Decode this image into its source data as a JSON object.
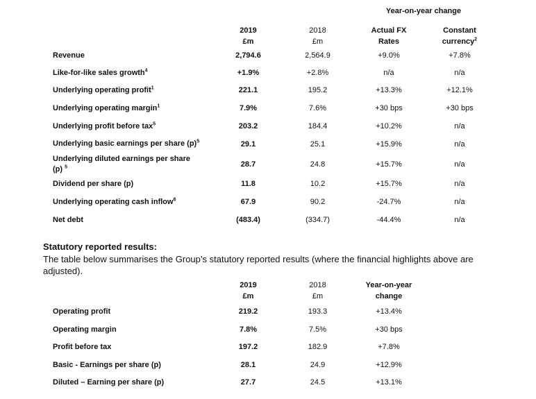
{
  "table1": {
    "yoy_header": "Year-on-year change",
    "col_headers": [
      {
        "line1": "2019",
        "line2": "£m"
      },
      {
        "line1": "2018",
        "line2": "£m"
      },
      {
        "line1": "Actual FX",
        "line2": "Rates"
      },
      {
        "line1": "Constant",
        "line2": "currency",
        "sup": "2"
      }
    ],
    "rows": [
      {
        "label": "Revenue",
        "sup": "",
        "v2019": "2,794.6",
        "v2018": "2,564.9",
        "actual": "+9.0%",
        "constant": "+7.8%"
      },
      {
        "label": "Like-for-like sales growth",
        "sup": "4",
        "v2019": "+1.9%",
        "v2018": "+2.8%",
        "actual": "n/a",
        "constant": "n/a"
      },
      {
        "label": "Underlying operating profit",
        "sup": "1",
        "v2019": "221.1",
        "v2018": "195.2",
        "actual": "+13.3%",
        "constant": "+12.1%"
      },
      {
        "label": "Underlying operating margin",
        "sup": "1",
        "v2019": "7.9%",
        "v2018": "7.6%",
        "actual": "+30 bps",
        "constant": "+30 bps"
      },
      {
        "label": "Underlying profit before tax",
        "sup": "5",
        "v2019": "203.2",
        "v2018": "184.4",
        "actual": "+10.2%",
        "constant": "n/a"
      },
      {
        "label": "Underlying basic earnings per share (p)",
        "sup": "5",
        "v2019": "29.1",
        "v2018": "25.1",
        "actual": "+15.9%",
        "constant": "n/a"
      },
      {
        "label": "Underlying diluted earnings per share",
        "label2": "(p)",
        "sup": "5",
        "v2019": "28.7",
        "v2018": "24.8",
        "actual": "+15.7%",
        "constant": "n/a"
      },
      {
        "label": "Dividend per share (p)",
        "sup": "",
        "v2019": "11.8",
        "v2018": "10.2",
        "actual": "+15.7%",
        "constant": "n/a"
      },
      {
        "label": "Underlying operating cash inflow",
        "sup": "6",
        "v2019": "67.9",
        "v2018": "90.2",
        "actual": "-24.7%",
        "constant": "n/a"
      },
      {
        "label": "Net debt",
        "sup": "",
        "v2019": "(483.4)",
        "v2018": "(334.7)",
        "actual": "-44.4%",
        "constant": "n/a"
      }
    ]
  },
  "section": {
    "title": "Statutory reported results:",
    "body": "The table below summarises the Group’s statutory reported results (where the financial highlights above are adjusted)."
  },
  "table2": {
    "col_headers": [
      {
        "line1": "2019",
        "line2": "£m"
      },
      {
        "line1": "2018",
        "line2": "£m"
      },
      {
        "line1": "Year-on-year",
        "line2": "change"
      }
    ],
    "rows": [
      {
        "label": "Operating profit",
        "v2019": "219.2",
        "v2018": "193.3",
        "change": "+13.4%"
      },
      {
        "label": "Operating margin",
        "v2019": "7.8%",
        "v2018": "7.5%",
        "change": "+30 bps"
      },
      {
        "label": "Profit before tax",
        "v2019": "197.2",
        "v2018": "182.9",
        "change": "+7.8%"
      },
      {
        "label": "Basic - Earnings per share (p)",
        "v2019": "28.1",
        "v2018": "24.9",
        "change": "+12.9%"
      },
      {
        "label": "Diluted – Earning per share (p)",
        "v2019": "27.7",
        "v2018": "24.5",
        "change": "+13.1%"
      }
    ]
  }
}
